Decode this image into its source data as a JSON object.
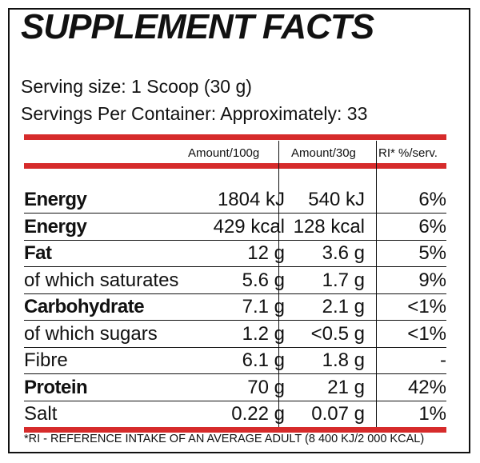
{
  "title": "SUPPLEMENT FACTS",
  "serving_size": "Serving size: 1 Scoop (30 g)",
  "servings_per_container": "Servings Per Container: Approximately: 33",
  "accent_color": "#d62b2b",
  "headers": {
    "col1": "Amount/100g",
    "col2": "Amount/30g",
    "col3": "RI* %/serv."
  },
  "rows": [
    {
      "label": "Energy",
      "per100": "1804 kJ",
      "per30": "540 kJ",
      "ri": "6%",
      "bold": true
    },
    {
      "label": "Energy",
      "per100": "429 kcal",
      "per30": "128 kcal",
      "ri": "6%",
      "bold": true
    },
    {
      "label": "Fat",
      "per100": "12 g",
      "per30": "3.6 g",
      "ri": "5%",
      "bold": true
    },
    {
      "label": "of which saturates",
      "per100": "5.6 g",
      "per30": "1.7 g",
      "ri": "9%",
      "bold": false
    },
    {
      "label": "Carbohydrate",
      "per100": "7.1 g",
      "per30": "2.1 g",
      "ri": "<1%",
      "bold": true
    },
    {
      "label": "of which sugars",
      "per100": "1.2 g",
      "per30": "<0.5 g",
      "ri": "<1%",
      "bold": false
    },
    {
      "label": "Fibre",
      "per100": "6.1 g",
      "per30": "1.8 g",
      "ri": "-",
      "bold": false
    },
    {
      "label": "Protein",
      "per100": "70 g",
      "per30": "21 g",
      "ri": "42%",
      "bold": true
    },
    {
      "label": "Salt",
      "per100": "0.22 g",
      "per30": "0.07 g",
      "ri": "1%",
      "bold": false
    }
  ],
  "footnote": "*RI - REFERENCE INTAKE OF AN AVERAGE ADULT (8 400 KJ/2 000 KCAL)"
}
